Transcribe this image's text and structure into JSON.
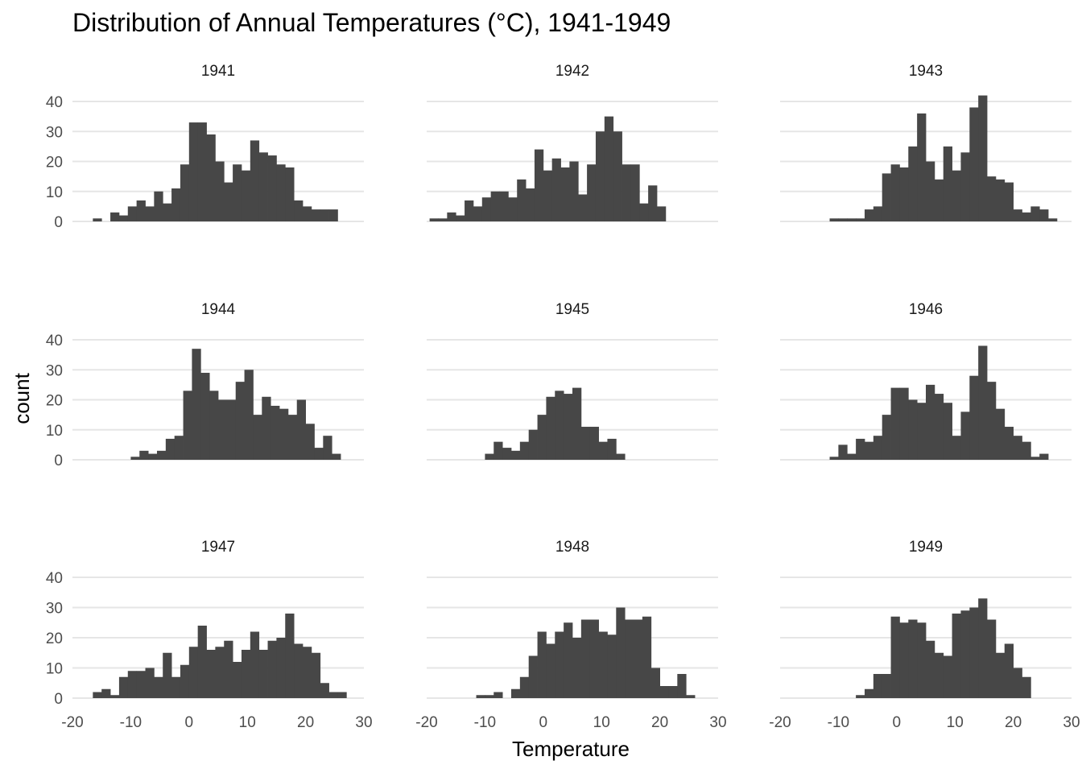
{
  "chart_data": {
    "type": "bar",
    "title": "Distribution of Annual Temperatures (°C), 1941-1949",
    "xlabel": "Temperature",
    "ylabel": "count",
    "xlim": [
      -20,
      30
    ],
    "ylim": [
      0,
      40
    ],
    "x_ticks": [
      -20,
      -10,
      0,
      10,
      20,
      30
    ],
    "y_ticks": [
      0,
      10,
      20,
      30,
      40
    ],
    "bin_width": 1.5,
    "grid": "horizontal",
    "legend": "none",
    "bar_color": "#474747",
    "facets": [
      {
        "label": "1941",
        "bin_start": -16.5,
        "counts": [
          1,
          0,
          3,
          2,
          5,
          7,
          5,
          10,
          6,
          11,
          19,
          33,
          33,
          29,
          20,
          13,
          19,
          17,
          27,
          23,
          22,
          19,
          18,
          7,
          5,
          4,
          4,
          4
        ]
      },
      {
        "label": "1942",
        "bin_start": -19.5,
        "counts": [
          1,
          1,
          3,
          2,
          7,
          5,
          8,
          10,
          10,
          8,
          14,
          11,
          24,
          17,
          21,
          18,
          20,
          9,
          19,
          30,
          35,
          30,
          19,
          19,
          6,
          12,
          5
        ]
      },
      {
        "label": "1943",
        "bin_start": -11.5,
        "counts": [
          1,
          1,
          1,
          1,
          4,
          5,
          16,
          19,
          18,
          25,
          36,
          20,
          14,
          25,
          17,
          23,
          38,
          42,
          15,
          14,
          13,
          4,
          3,
          5,
          4,
          1
        ]
      },
      {
        "label": "1944",
        "bin_start": -10,
        "counts": [
          1,
          3,
          2,
          3,
          7,
          8,
          23,
          37,
          29,
          23,
          20,
          20,
          26,
          30,
          15,
          21,
          18,
          17,
          15,
          20,
          12,
          4,
          8,
          2
        ]
      },
      {
        "label": "1945",
        "bin_start": -10,
        "counts": [
          2,
          6,
          4,
          3,
          6,
          10,
          15,
          21,
          23,
          22,
          24,
          11,
          11,
          6,
          7,
          2
        ]
      },
      {
        "label": "1946",
        "bin_start": -11.5,
        "counts": [
          1,
          5,
          2,
          7,
          6,
          8,
          15,
          24,
          24,
          20,
          19,
          25,
          22,
          19,
          8,
          16,
          28,
          38,
          26,
          17,
          11,
          8,
          6,
          1,
          2
        ]
      },
      {
        "label": "1947",
        "bin_start": -16.5,
        "counts": [
          2,
          3,
          1,
          7,
          9,
          9,
          10,
          7,
          15,
          7,
          11,
          17,
          24,
          16,
          17,
          19,
          12,
          16,
          22,
          16,
          19,
          20,
          28,
          18,
          17,
          15,
          5,
          2,
          2
        ]
      },
      {
        "label": "1948",
        "bin_start": -11.5,
        "counts": [
          1,
          1,
          2,
          0,
          3,
          7,
          14,
          22,
          18,
          22,
          25,
          20,
          26,
          26,
          22,
          21,
          30,
          26,
          26,
          27,
          10,
          4,
          4,
          8,
          1
        ]
      },
      {
        "label": "1949",
        "bin_start": -7,
        "counts": [
          1,
          3,
          8,
          8,
          27,
          25,
          26,
          25,
          19,
          15,
          14,
          28,
          29,
          30,
          33,
          26,
          15,
          18,
          10,
          7
        ]
      }
    ]
  }
}
